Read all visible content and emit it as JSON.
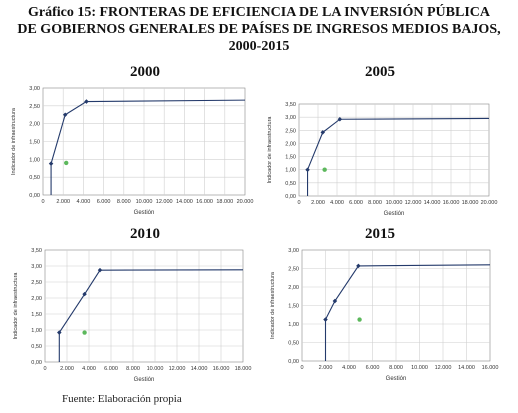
{
  "title": {
    "line1": "Gráfico 15: FRONTERAS DE EFICIENCIA DE LA INVERSIÓN PÚBLICA",
    "line2": "DE GOBIERNOS GENERALES DE PAÍSES DE INGRESOS MEDIOS BAJOS,",
    "line3": "2000-2015"
  },
  "footer": "Fuente:   Elaboración propia",
  "colors": {
    "frontier": "#243a6b",
    "point": "#5cb85c",
    "grid": "#d0d0d0",
    "axis": "#888888"
  },
  "chart_data": [
    {
      "type": "line",
      "title": "2000",
      "xlabel": "Gestión",
      "ylabel": "Indicador de infraestructura",
      "xlim": [
        0,
        20000
      ],
      "ylim": [
        0,
        3.0
      ],
      "xticks": [
        "0",
        "2.000",
        "4.000",
        "6.000",
        "8.000",
        "10.000",
        "12.000",
        "14.000",
        "16.000",
        "18.000",
        "20.000"
      ],
      "yticks": [
        "0,00",
        "0,50",
        "1,00",
        "1,50",
        "2,00",
        "2,50",
        "3,00"
      ],
      "frontier": [
        [
          800,
          0
        ],
        [
          800,
          0.88
        ],
        [
          2200,
          2.25
        ],
        [
          4300,
          2.62
        ],
        [
          20000,
          2.66
        ]
      ],
      "frontier_points": [
        [
          800,
          0.88
        ],
        [
          2200,
          2.25
        ],
        [
          4300,
          2.62
        ]
      ],
      "outlier": [
        2300,
        0.9
      ],
      "grid": true
    },
    {
      "type": "line",
      "title": "2005",
      "xlabel": "Gestión",
      "ylabel": "Indicador de infraestructura",
      "xlim": [
        0,
        20000
      ],
      "ylim": [
        0,
        3.5
      ],
      "xticks": [
        "0",
        "2.000",
        "4.000",
        "6.000",
        "8.000",
        "10.000",
        "12.000",
        "14.000",
        "16.000",
        "18.000",
        "20.000"
      ],
      "yticks": [
        "0,00",
        "0,50",
        "1,00",
        "1,50",
        "2,00",
        "2,50",
        "3,00",
        "3,50"
      ],
      "frontier": [
        [
          900,
          0
        ],
        [
          900,
          1.0
        ],
        [
          2500,
          2.42
        ],
        [
          4300,
          2.92
        ],
        [
          20000,
          2.95
        ]
      ],
      "frontier_points": [
        [
          900,
          1.0
        ],
        [
          2500,
          2.42
        ],
        [
          4300,
          2.92
        ]
      ],
      "outlier": [
        2700,
        1.0
      ],
      "grid": true
    },
    {
      "type": "line",
      "title": "2010",
      "xlabel": "Gestión",
      "ylabel": "Indicador de infraestructura",
      "xlim": [
        0,
        18000
      ],
      "ylim": [
        0,
        3.5
      ],
      "xticks": [
        "0",
        "2.000",
        "4.000",
        "6.000",
        "8.000",
        "10.000",
        "12.000",
        "14.000",
        "16.000",
        "18.000"
      ],
      "yticks": [
        "0,00",
        "0,50",
        "1,00",
        "1,50",
        "2,00",
        "2,50",
        "3,00",
        "3,50"
      ],
      "frontier": [
        [
          1300,
          0
        ],
        [
          1300,
          0.92
        ],
        [
          3600,
          2.12
        ],
        [
          5000,
          2.87
        ],
        [
          18000,
          2.88
        ]
      ],
      "frontier_points": [
        [
          1300,
          0.92
        ],
        [
          3600,
          2.12
        ],
        [
          5000,
          2.87
        ]
      ],
      "outlier": [
        3600,
        0.92
      ],
      "grid": true
    },
    {
      "type": "line",
      "title": "2015",
      "xlabel": "Gestión",
      "ylabel": "Indicador de infraestructura",
      "xlim": [
        0,
        16000
      ],
      "ylim": [
        0,
        3.0
      ],
      "xticks": [
        "0",
        "2.000",
        "4.000",
        "6.000",
        "8.000",
        "10.000",
        "12.000",
        "14.000",
        "16.000"
      ],
      "yticks": [
        "0,00",
        "0,50",
        "1,00",
        "1,50",
        "2,00",
        "2,50",
        "3,00"
      ],
      "frontier": [
        [
          2000,
          0
        ],
        [
          2000,
          1.12
        ],
        [
          2800,
          1.62
        ],
        [
          4800,
          2.57
        ],
        [
          16000,
          2.6
        ]
      ],
      "frontier_points": [
        [
          2000,
          1.12
        ],
        [
          2800,
          1.62
        ],
        [
          4800,
          2.57
        ]
      ],
      "outlier": [
        4900,
        1.12
      ],
      "grid": true
    }
  ]
}
